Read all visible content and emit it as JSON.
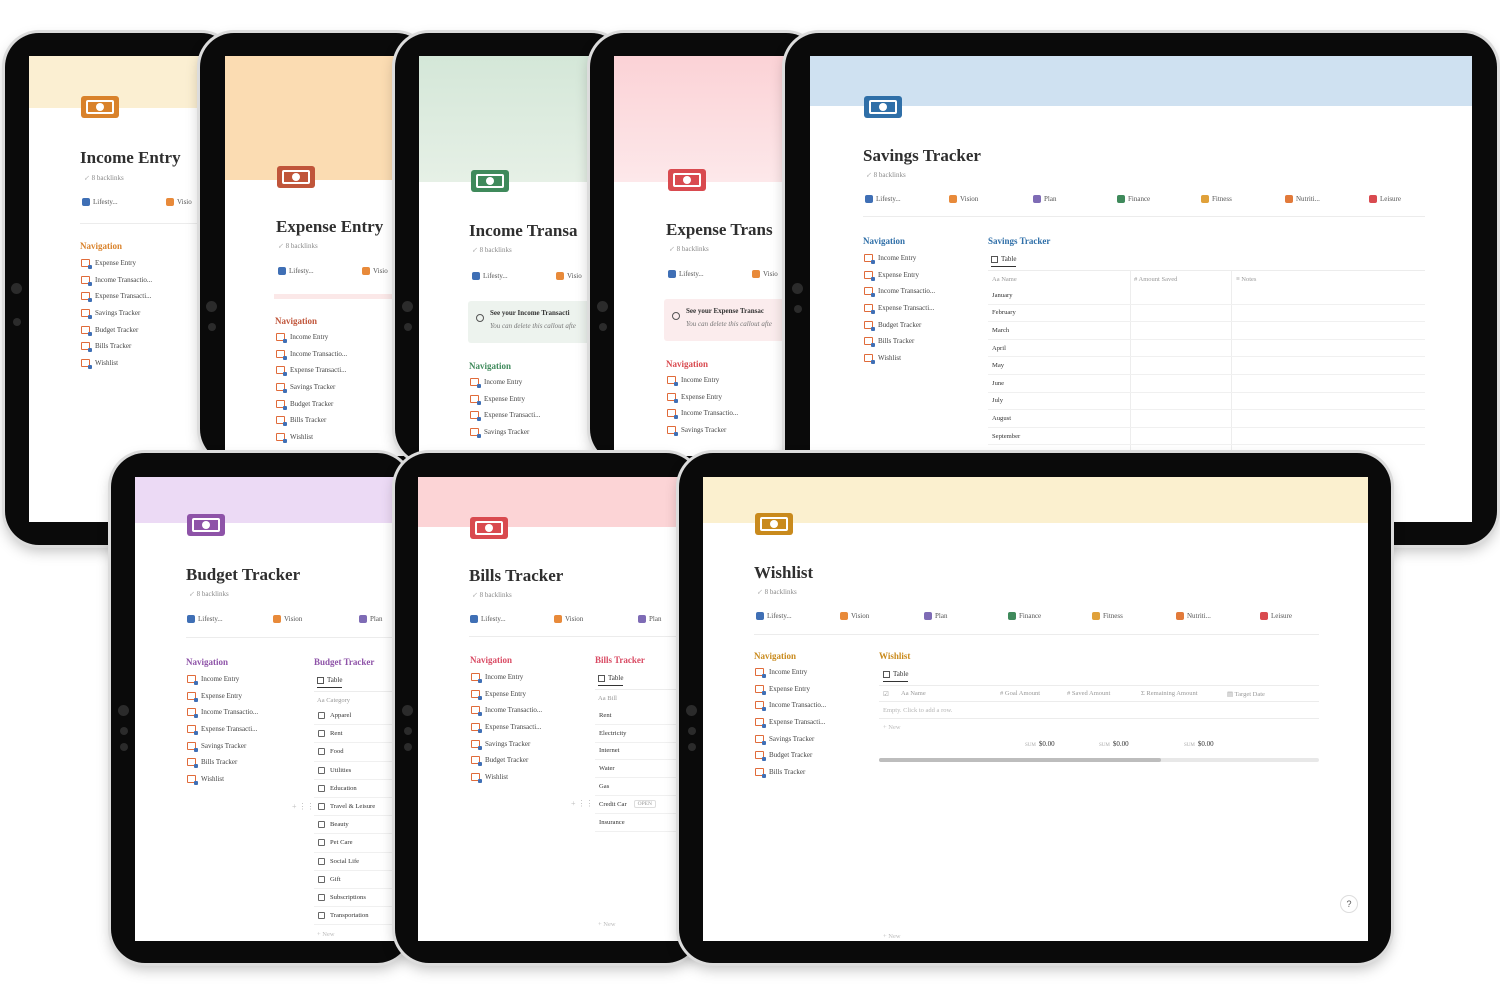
{
  "colors": {
    "income_cover": "#fbefd2",
    "expense_cover": "#fbdcb2",
    "income_tx_cover": "#dcebdf",
    "expense_tx_cover": "#fde0e3",
    "savings_cover": "#cfe1f1",
    "budget_cover": "#ecdaf5",
    "bills_cover": "#fcd4d6",
    "wishlist_cover": "#fbf0cf",
    "orange": "#d9822b",
    "green": "#3f8a5b",
    "red": "#d94a4f",
    "blue": "#2f6fa8",
    "purple": "#8e53a8",
    "pink": "#d94a63",
    "gold": "#c98a1c"
  },
  "links": {
    "lifestyle": "Lifesty...",
    "vision": "Vision",
    "vision_cut": "Visio",
    "plan": "Plan",
    "finance": "Finance",
    "fitness": "Fitness",
    "nutrition": "Nutriti...",
    "leisure": "Leisure"
  },
  "backlinks": "8 backlinks",
  "nav_heading": "Navigation",
  "nav": {
    "income_entry": "Income Entry",
    "expense_entry": "Expense Entry",
    "income_tx": "Income Transactio...",
    "expense_tx": "Expense Transacti...",
    "savings": "Savings Tracker",
    "budget": "Budget Tracker",
    "bills": "Bills Tracker",
    "wishlist": "Wishlist"
  },
  "pages": {
    "income_entry": {
      "title": "Income Entry"
    },
    "expense_entry": {
      "title": "Expense Entry"
    },
    "income_tx": {
      "title": "Income Transa",
      "callout_title": "See your Income Transacti",
      "callout_body": "You can delete this callout afte"
    },
    "expense_tx": {
      "title": "Expense Trans",
      "callout_title": "See your Expense Transac",
      "callout_body": "You can delete this callout afte"
    },
    "savings": {
      "title": "Savings Tracker",
      "db_title": "Savings Tracker",
      "view": "Table",
      "cols": [
        "Name",
        "Amount Saved",
        "Notes"
      ],
      "rows": [
        "January",
        "February",
        "March",
        "April",
        "May",
        "June",
        "July",
        "August",
        "September"
      ]
    },
    "budget": {
      "title": "Budget Tracker",
      "db_title": "Budget Tracker",
      "view": "Table",
      "col": "Category",
      "rows": [
        "Apparel",
        "Rent",
        "Food",
        "Utilities",
        "Education",
        "Travel & Leisure",
        "Beauty",
        "Pet Care",
        "Social Life",
        "Gift",
        "Subscriptions",
        "Transportation"
      ],
      "new": "New"
    },
    "bills": {
      "title": "Bills Tracker",
      "db_title": "Bills Tracker",
      "view": "Table",
      "col": "Bill",
      "rows": [
        "Rent",
        "Electricity",
        "Internet",
        "Water",
        "Gas",
        "Credit Car",
        "Insurance"
      ],
      "open": "OPEN",
      "new": "New"
    },
    "wishlist": {
      "title": "Wishlist",
      "db_title": "Wishlist",
      "view": "Table",
      "cols": [
        "Name",
        "Goal Amount",
        "Saved Amount",
        "Remaining Amount",
        "Target Date"
      ],
      "empty": "Empty. Click to add a row.",
      "new": "New",
      "sum_label": "SUM",
      "sums": [
        "$0.00",
        "$0.00",
        "$0.00"
      ],
      "help": "?"
    }
  }
}
